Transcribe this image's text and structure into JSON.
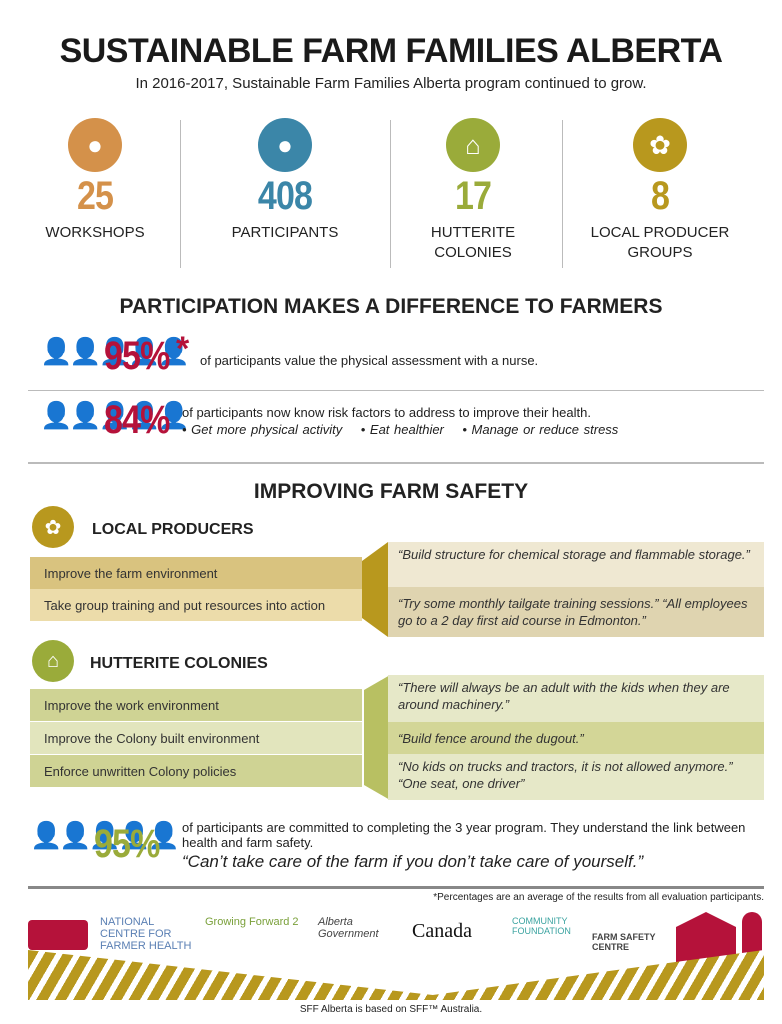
{
  "title": "SUSTAINABLE FARM FAMILIES ALBERTA",
  "subtitle": "In 2016-2017, Sustainable Farm Families Alberta program continued to grow.",
  "stats": [
    {
      "number": "25",
      "label": "WORKSHOPS",
      "icon": "group-people-icon",
      "color": "#d4914a"
    },
    {
      "number": "408",
      "label": "PARTICIPANTS",
      "icon": "family-icon",
      "color": "#3b86a8"
    },
    {
      "number": "17",
      "label": "HUTTERITE COLONIES",
      "icon": "barn-icon",
      "color": "#9aab3a"
    },
    {
      "number": "8",
      "label": "LOCAL PRODUCER GROUPS",
      "icon": "hand-plant-icon",
      "color": "#b8981e"
    }
  ],
  "participation": {
    "heading": "PARTICIPATION MAKES A DIFFERENCE TO FARMERS",
    "items": [
      {
        "pct": "95%",
        "asterisk": "*",
        "text": "of participants value the physical assessment with a nurse."
      },
      {
        "pct": "84%",
        "text": "of participants now know risk factors to address to improve their health.",
        "bullets": [
          "• Get more physical activity",
          "• Eat healthier",
          "• Manage or reduce stress"
        ]
      }
    ]
  },
  "safety": {
    "heading": "IMPROVING FARM SAFETY",
    "local": {
      "heading": "LOCAL PRODUCERS",
      "actions": [
        "Improve the farm environment",
        "Take group training and put resources into action"
      ],
      "quotes": [
        "“Build structure for chemical storage and flammable storage.”",
        "“Try some monthly tailgate training sessions.” “All employees go to a 2 day first aid course in Edmonton.”"
      ]
    },
    "hutterite": {
      "heading": "HUTTERITE COLONIES",
      "actions": [
        "Improve the work environment",
        "Improve the Colony built environment",
        "Enforce unwritten Colony policies"
      ],
      "quotes": [
        "“There will always be an adult with the kids when they are around machinery.”",
        "“Build fence around the dugout.”",
        "“No kids on trucks and tractors, it is not allowed anymore.” “One seat, one driver”"
      ]
    }
  },
  "commit": {
    "pct": "95%",
    "text": "of participants are committed to completing the 3 year program. They understand the link between health and farm safety.",
    "quote": "“Can’t take care of the farm if you don’t take care of yourself.”"
  },
  "footnote": "*Percentages are an average of the results from all evaluation participants.",
  "logos": [
    "NATIONAL CENTRE FOR FARMER HEALTH",
    "Growing Forward 2",
    "Alberta Government",
    "Canada",
    "COMMUNITY FOUNDATION",
    "FARM SAFETY CENTRE"
  ],
  "credit": "SFF Alberta is based on SFF™ Australia.",
  "colors": {
    "red": "#b5123a",
    "gold": "#b8981e",
    "green": "#9aab3a"
  }
}
